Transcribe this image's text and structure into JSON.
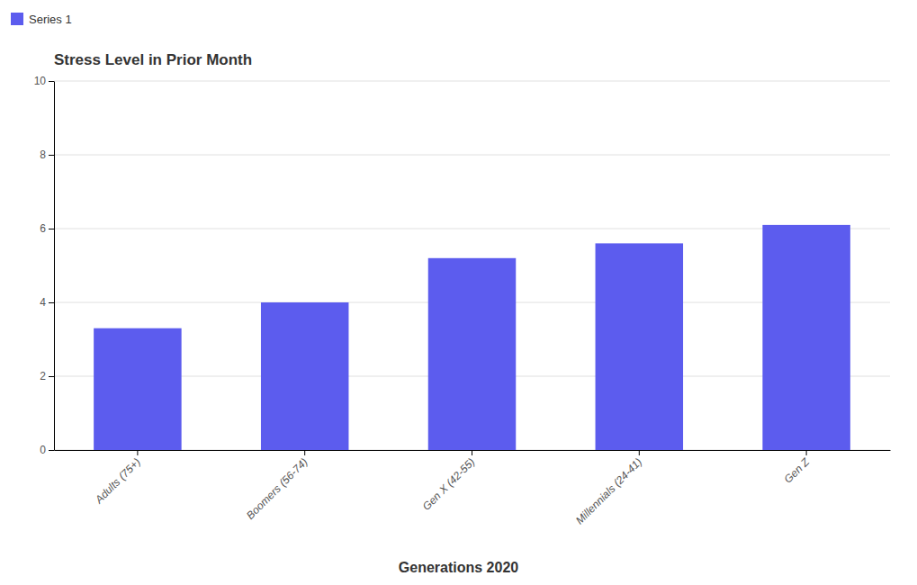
{
  "chart_data": {
    "type": "bar",
    "title": "Stress Level in Prior Month",
    "xlabel": "Generations 2020",
    "categories": [
      "Adults (75+)",
      "Boomers (56-74)",
      "Gen X (42-55)",
      "Millennials (24-41)",
      "Gen Z"
    ],
    "series": [
      {
        "name": "Series 1",
        "color": "#5c5cee",
        "values": [
          3.3,
          4.0,
          5.2,
          5.6,
          6.1
        ]
      }
    ],
    "ylim": [
      0,
      10
    ],
    "yticks": [
      0,
      2,
      4,
      6,
      8,
      10
    ],
    "grid": true,
    "legend": "upper left"
  }
}
